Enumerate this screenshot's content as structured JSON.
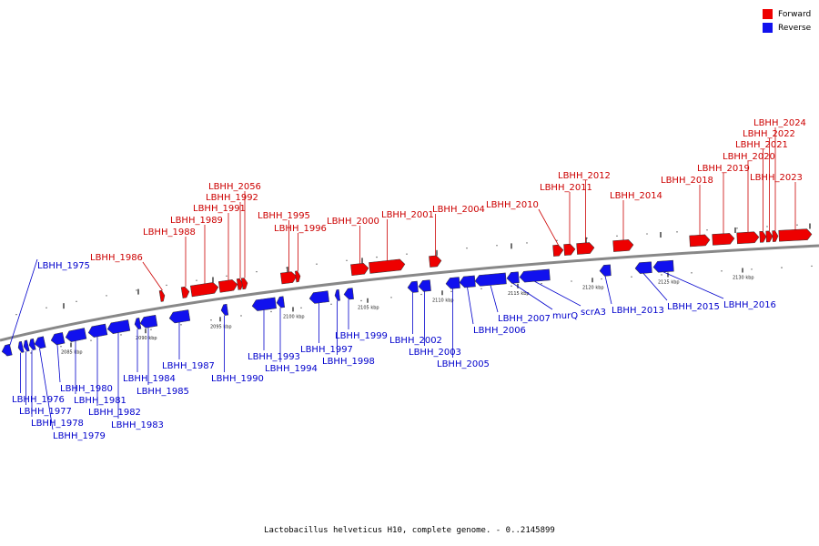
{
  "colors": {
    "forward": "#ee0000",
    "reverse": "#1111ee",
    "backbone": "#888888"
  },
  "legend": [
    {
      "label": "Forward",
      "strand": "forward"
    },
    {
      "label": "Reverse",
      "strand": "reverse"
    }
  ],
  "caption": "Lactobacillus helveticus H10, complete genome. - 0..2145899",
  "scale_labels": [
    "2085 kbp",
    "2090 kbp",
    "2095 kbp",
    "2100 kbp",
    "2105 kbp",
    "2110 kbp",
    "2115 kbp",
    "2120 kbp",
    "2125 kbp",
    "2130 kbp"
  ],
  "genes_forward": [
    "LBHH_1986",
    "LBHH_1988",
    "LBHH_1989",
    "LBHH_1991",
    "LBHH_1992",
    "LBHH_2056",
    "LBHH_1995",
    "LBHH_1996",
    "LBHH_2000",
    "LBHH_2001",
    "LBHH_2004",
    "LBHH_2010",
    "LBHH_2011",
    "LBHH_2012",
    "LBHH_2014",
    "LBHH_2018",
    "LBHH_2019",
    "LBHH_2020",
    "LBHH_2021",
    "LBHH_2022",
    "LBHH_2024",
    "LBHH_2023"
  ],
  "genes_reverse": [
    "LBHH_1975",
    "LBHH_1976",
    "LBHH_1977",
    "LBHH_1978",
    "LBHH_1979",
    "LBHH_1980",
    "LBHH_1981",
    "LBHH_1982",
    "LBHH_1983",
    "LBHH_1984",
    "LBHH_1985",
    "LBHH_1987",
    "LBHH_1990",
    "LBHH_1993",
    "LBHH_1994",
    "LBHH_1997",
    "LBHH_1998",
    "LBHH_1999",
    "LBHH_2002",
    "LBHH_2003",
    "LBHH_2005",
    "LBHH_2006",
    "LBHH_2007",
    "murQ",
    "scrA3",
    "LBHH_2013",
    "LBHH_2015",
    "LBHH_2016"
  ]
}
